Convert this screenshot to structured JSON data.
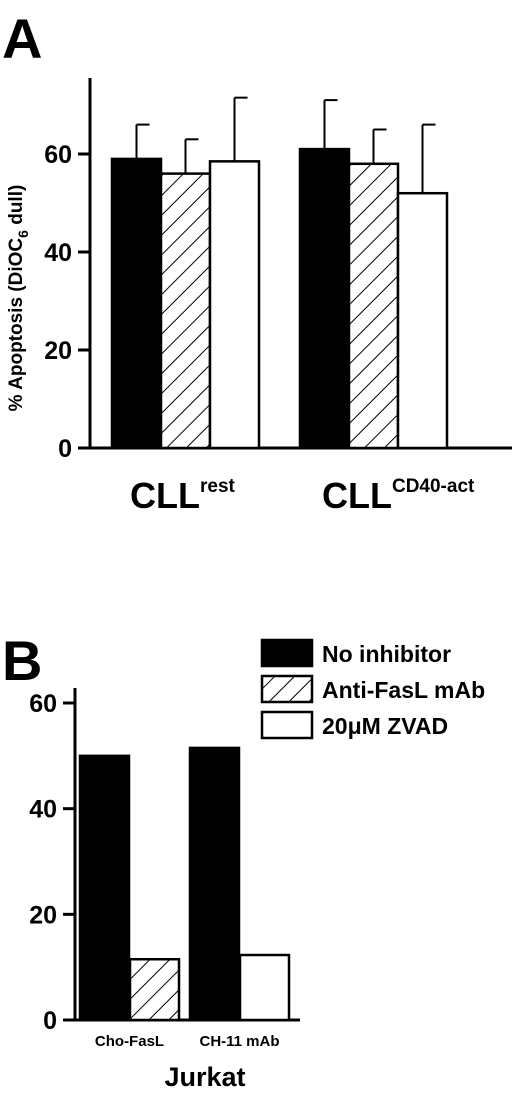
{
  "chart_data": [
    {
      "panel": "A",
      "type": "bar",
      "ylabel": "% Apoptosis (DiOC6 dull)",
      "ylim": [
        0,
        80
      ],
      "yticks": [
        "0",
        "20",
        "40",
        "60"
      ],
      "categories": [
        {
          "base": "CLL",
          "sup": "rest"
        },
        {
          "base": "CLL",
          "sup": "CD40-act"
        }
      ],
      "series": [
        {
          "name": "No inhibitor",
          "fill": "solid",
          "values": [
            59,
            61
          ],
          "errors": [
            7,
            10
          ]
        },
        {
          "name": "Anti-FasL mAb",
          "fill": "hatched",
          "values": [
            56,
            58
          ],
          "errors": [
            7,
            7
          ]
        },
        {
          "name": "20μM ZVAD",
          "fill": "open",
          "values": [
            58.5,
            52
          ],
          "errors": [
            13,
            14
          ]
        }
      ]
    },
    {
      "panel": "B",
      "type": "bar",
      "ylabel": "",
      "ylim": [
        0,
        65
      ],
      "yticks": [
        "0",
        "20",
        "40",
        "60"
      ],
      "xlabel": "Jurkat",
      "categories": [
        {
          "label": "Cho-FasL",
          "bars": [
            {
              "series": "No inhibitor",
              "value": 50
            },
            {
              "series": "Anti-FasL mAb",
              "value": 11.5
            }
          ]
        },
        {
          "label": "CH-11 mAb",
          "bars": [
            {
              "series": "No inhibitor",
              "value": 51.5
            },
            {
              "series": "20μM ZVAD",
              "value": 12.3
            }
          ]
        }
      ],
      "legend": {
        "placement": "top-right",
        "items": [
          {
            "label": "No inhibitor",
            "fill": "solid"
          },
          {
            "label": "Anti-FasL mAb",
            "fill": "hatched"
          },
          {
            "label": "20μM ZVAD",
            "fill": "open"
          }
        ]
      }
    }
  ],
  "colors": {
    "bar_solid": "#000000",
    "bar_open": "#ffffff",
    "ink": "#000000"
  }
}
